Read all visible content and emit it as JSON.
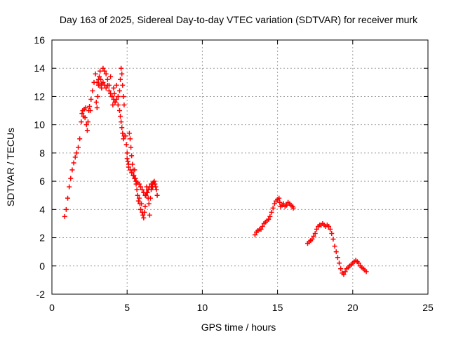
{
  "chart_data": {
    "type": "scatter",
    "title": "Day 163 of 2025, Sidereal Day-to-day VTEC variation (SDTVAR) for receiver murk",
    "xlabel": "GPS time / hours",
    "ylabel": "SDTVAR / TECUs",
    "xlim": [
      0,
      25
    ],
    "ylim": [
      -2,
      16
    ],
    "xticks": [
      0,
      5,
      10,
      15,
      20,
      25
    ],
    "yticks": [
      -2,
      0,
      2,
      4,
      6,
      8,
      10,
      12,
      14,
      16
    ],
    "grid": true,
    "legend": "none",
    "marker": "plus",
    "color": "#ff0000",
    "series": [
      {
        "x": [
          0.85,
          0.95,
          1.05,
          1.15,
          1.25,
          1.35,
          1.45,
          1.55,
          1.65,
          1.75,
          1.85,
          1.95,
          2.0,
          2.05,
          2.1,
          2.15,
          2.2,
          2.25,
          2.3,
          2.35,
          2.4,
          2.45,
          2.5,
          2.55,
          2.6,
          2.7,
          2.8,
          2.9,
          2.95,
          3.0,
          3.05,
          3.1,
          3.15,
          3.2,
          3.25,
          3.3,
          3.4,
          3.5,
          3.6,
          3.7,
          3.8,
          3.9,
          4.0,
          4.05,
          4.1,
          4.15,
          4.2,
          4.3,
          4.4,
          4.5,
          4.55,
          4.6,
          4.65,
          4.7,
          4.75,
          4.8
        ],
        "y": [
          3.5,
          4.0,
          4.8,
          5.6,
          6.2,
          6.8,
          7.3,
          7.7,
          8.0,
          8.4,
          9.0,
          10.2,
          10.8,
          11.0,
          10.6,
          11.1,
          10.5,
          11.2,
          10.0,
          9.6,
          10.2,
          11.0,
          11.3,
          11.0,
          11.8,
          12.4,
          13.0,
          13.6,
          11.6,
          11.2,
          12.0,
          12.8,
          13.4,
          13.8,
          13.2,
          12.9,
          14.0,
          13.8,
          13.6,
          13.2,
          12.8,
          13.4,
          12.0,
          11.4,
          12.6,
          12.2,
          11.6,
          12.8,
          12.0,
          12.4,
          13.2,
          14.0,
          13.6,
          12.8,
          12.0,
          11.4
        ]
      },
      {
        "x": [
          3.0,
          3.1,
          3.2,
          3.3,
          3.4,
          3.5,
          3.6,
          3.7,
          3.8,
          3.9,
          4.0,
          4.1,
          4.2,
          4.3,
          4.4,
          4.5,
          4.55,
          4.6,
          4.65,
          4.7,
          4.75,
          4.8
        ],
        "y": [
          13.0,
          13.2,
          12.8,
          12.6,
          13.0,
          12.8,
          12.6,
          12.8,
          12.4,
          12.2,
          12.0,
          11.8,
          11.6,
          11.8,
          11.4,
          11.0,
          10.6,
          10.2,
          9.8,
          9.4,
          9.0,
          9.2
        ]
      },
      {
        "x": [
          4.9,
          4.95,
          5.0,
          5.05,
          5.1,
          5.15,
          5.2,
          5.25,
          5.3,
          5.35,
          5.4,
          5.45,
          5.5,
          5.55,
          5.6,
          5.65,
          5.7,
          5.75,
          5.8,
          5.85,
          5.9,
          5.95,
          6.0,
          6.05,
          6.1,
          6.15,
          6.2,
          6.25,
          6.3,
          6.35,
          6.4,
          6.45,
          6.5,
          6.55,
          6.6,
          6.65,
          6.7,
          6.75,
          6.8,
          6.85,
          6.9,
          6.95,
          7.0
        ],
        "y": [
          9.2,
          8.6,
          8.0,
          7.4,
          7.0,
          9.4,
          9.0,
          8.4,
          7.8,
          7.2,
          6.8,
          6.4,
          6.8,
          6.2,
          5.8,
          5.4,
          5.0,
          4.6,
          4.8,
          4.4,
          4.0,
          4.4,
          3.8,
          3.6,
          3.4,
          3.8,
          4.2,
          5.0,
          5.6,
          5.2,
          4.8,
          4.4,
          3.6,
          4.8,
          5.4,
          5.6,
          5.8,
          5.9,
          6.0,
          5.8,
          5.6,
          5.4,
          5.0
        ]
      },
      {
        "x": [
          5.0,
          5.1,
          5.2,
          5.3,
          5.4,
          5.5,
          5.6,
          5.7,
          5.8,
          5.9,
          6.0,
          6.1,
          6.2,
          6.3,
          6.4,
          6.5,
          6.6,
          6.7
        ],
        "y": [
          7.6,
          7.2,
          6.8,
          6.6,
          6.4,
          6.2,
          6.0,
          5.9,
          5.8,
          5.6,
          5.4,
          5.2,
          5.0,
          5.2,
          5.4,
          5.6,
          5.8,
          5.6
        ]
      },
      {
        "x": [
          13.5,
          13.6,
          13.7,
          13.8,
          13.9,
          14.0,
          14.1,
          14.2,
          14.3,
          14.4,
          14.5,
          14.6,
          14.7,
          14.8,
          14.9,
          15.0,
          15.1,
          15.15,
          15.2,
          15.3,
          15.4,
          15.5,
          15.6,
          15.7,
          15.8,
          15.9,
          16.0,
          16.05
        ],
        "y": [
          2.2,
          2.4,
          2.5,
          2.6,
          2.6,
          2.8,
          3.0,
          3.1,
          3.2,
          3.3,
          3.5,
          3.8,
          4.1,
          4.4,
          4.6,
          4.7,
          4.8,
          4.5,
          4.2,
          4.3,
          4.4,
          4.2,
          4.3,
          4.5,
          4.4,
          4.3,
          4.2,
          4.1
        ]
      },
      {
        "x": [
          17.0,
          17.1,
          17.2,
          17.3,
          17.4,
          17.5,
          17.6,
          17.7,
          17.8,
          17.9,
          18.0,
          18.1,
          18.2,
          18.3,
          18.4,
          18.5,
          18.6,
          18.7,
          18.8,
          18.9,
          19.0,
          19.1,
          19.2,
          19.3,
          19.4,
          19.5,
          19.6,
          19.7,
          19.8,
          19.9,
          20.0,
          20.1,
          20.2,
          20.3,
          20.4,
          20.5,
          20.6,
          20.7,
          20.8,
          20.9
        ],
        "y": [
          1.6,
          1.7,
          1.8,
          1.9,
          2.1,
          2.3,
          2.6,
          2.8,
          2.9,
          2.9,
          3.0,
          2.9,
          2.8,
          2.9,
          2.8,
          2.6,
          2.3,
          1.9,
          1.4,
          1.0,
          0.6,
          0.2,
          -0.2,
          -0.5,
          -0.6,
          -0.4,
          -0.2,
          -0.1,
          0.0,
          0.1,
          0.2,
          0.3,
          0.4,
          0.3,
          0.2,
          0.0,
          -0.1,
          -0.2,
          -0.3,
          -0.4
        ]
      }
    ]
  }
}
